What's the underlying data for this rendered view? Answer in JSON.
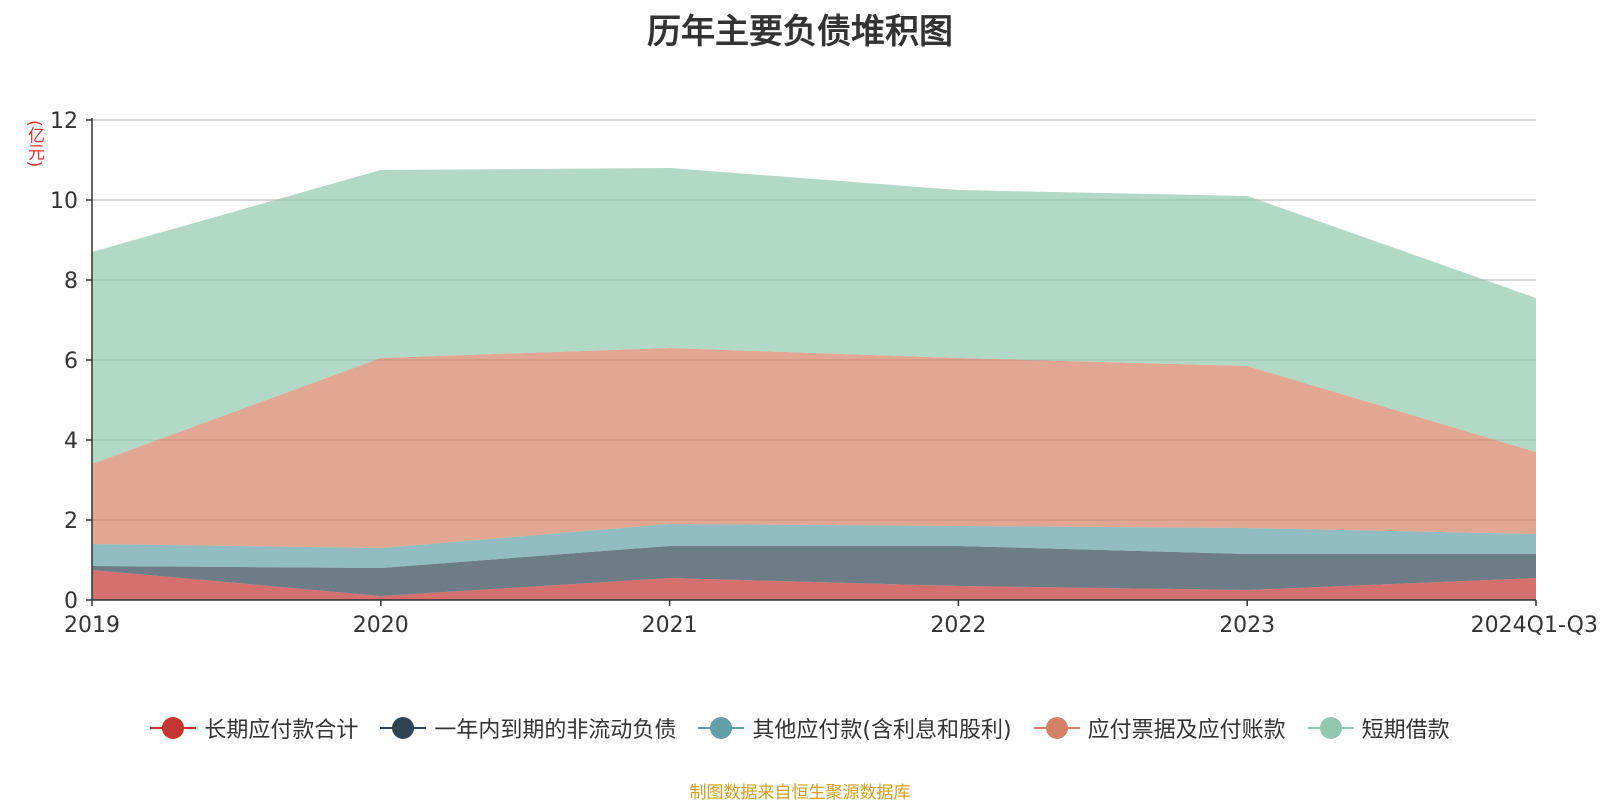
{
  "chart_data": {
    "type": "area",
    "stacked": true,
    "title": "历年主要负债堆积图",
    "ylabel": "(亿元)",
    "categories": [
      "2019",
      "2020",
      "2021",
      "2022",
      "2023",
      "2024Q1-Q3"
    ],
    "ylim": [
      0,
      12
    ],
    "yticks": [
      0,
      2,
      4,
      6,
      8,
      10,
      12
    ],
    "grid": true,
    "legend_position": "bottom",
    "series": [
      {
        "name": "长期应付款合计",
        "color": "#c23531",
        "values": [
          0.75,
          0.1,
          0.55,
          0.35,
          0.25,
          0.55
        ]
      },
      {
        "name": "一年内到期的非流动负债",
        "color": "#2f4554",
        "values": [
          0.1,
          0.7,
          0.8,
          1.0,
          0.9,
          0.6
        ]
      },
      {
        "name": "其他应付款(含利息和股利)",
        "color": "#61a0a8",
        "values": [
          0.55,
          0.5,
          0.55,
          0.5,
          0.65,
          0.5
        ]
      },
      {
        "name": "应付票据及应付账款",
        "color": "#d48265",
        "values": [
          2.0,
          4.75,
          4.4,
          4.2,
          4.05,
          2.05
        ]
      },
      {
        "name": "短期借款",
        "color": "#91c7ae",
        "values": [
          5.3,
          4.7,
          4.5,
          4.2,
          4.25,
          3.85
        ]
      }
    ]
  },
  "source_note": "制图数据来自恒生聚源数据库"
}
